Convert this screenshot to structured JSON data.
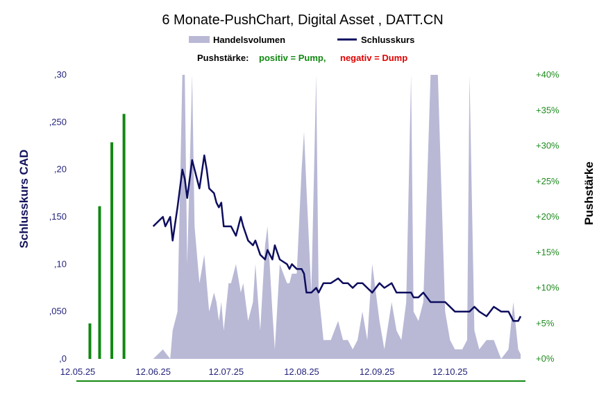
{
  "chart_data": {
    "type": "line",
    "title": "6 Monate-PushChart, Digital Asset , DATT.CN",
    "legend": {
      "volume_label": "Handelsvolumen",
      "close_label": "Schlusskurs",
      "placement": "top-center"
    },
    "push_legend": {
      "label": "Pushstärke:",
      "positive": "positiv = Pump,",
      "negative": "negativ = Dump"
    },
    "ylabel_left": "Schlusskurs CAD",
    "ylabel_right": "Pushstärke",
    "ylim_left": [
      0,
      0.3
    ],
    "ylim_right": [
      0,
      40
    ],
    "y_ticks_left": [
      ",0",
      ",050",
      ",10",
      ",150",
      ",20",
      ",250",
      ",30"
    ],
    "y_ticks_right": [
      "+0%",
      "+5%",
      "+10%",
      "+15%",
      "+20%",
      "+25%",
      "+30%",
      "+35%",
      "+40%"
    ],
    "x_ticks": [
      "12.05.25",
      "12.06.25",
      "12.07.25",
      "12.08.25",
      "12.09.25",
      "12.10.25"
    ],
    "x_range_days": [
      0,
      184
    ],
    "grid": false,
    "colors": {
      "volume": "#b9b9d6",
      "close": "#0d0d5e",
      "push_positive": "#118811",
      "push_negative": "#e00000",
      "title": "#000000",
      "left_axis": "#1f1f7a",
      "right_axis": "#1e8b1e",
      "baseline": "#118811"
    },
    "series": [
      {
        "name": "Schlusskurs",
        "type": "line",
        "axis": "left",
        "x": [
          31,
          35,
          36,
          38,
          39,
          41,
          43,
          44,
          45,
          47,
          48,
          50,
          52,
          53,
          54,
          56,
          57,
          58,
          59,
          60,
          62,
          63,
          65,
          67,
          68,
          70,
          72,
          73,
          75,
          77,
          78,
          80,
          81,
          83,
          86,
          87,
          88,
          90,
          92,
          93,
          94,
          96,
          98,
          99,
          101,
          104,
          107,
          109,
          111,
          113,
          115,
          117,
          119,
          121,
          124,
          126,
          129,
          131,
          133,
          135,
          137,
          138,
          140,
          142,
          145,
          148,
          151,
          153,
          155,
          158,
          160,
          161,
          163,
          165,
          168,
          171,
          174,
          177,
          179,
          181,
          182
        ],
        "y": [
          0.14,
          0.15,
          0.14,
          0.15,
          0.125,
          0.16,
          0.2,
          0.19,
          0.17,
          0.21,
          0.2,
          0.18,
          0.215,
          0.2,
          0.18,
          0.175,
          0.165,
          0.16,
          0.165,
          0.14,
          0.14,
          0.14,
          0.13,
          0.15,
          0.14,
          0.125,
          0.12,
          0.125,
          0.11,
          0.105,
          0.115,
          0.105,
          0.12,
          0.105,
          0.1,
          0.095,
          0.1,
          0.095,
          0.095,
          0.09,
          0.07,
          0.07,
          0.075,
          0.07,
          0.08,
          0.08,
          0.085,
          0.08,
          0.08,
          0.075,
          0.08,
          0.08,
          0.075,
          0.07,
          0.08,
          0.075,
          0.08,
          0.07,
          0.07,
          0.07,
          0.07,
          0.065,
          0.065,
          0.07,
          0.06,
          0.06,
          0.06,
          0.055,
          0.05,
          0.05,
          0.05,
          0.05,
          0.055,
          0.05,
          0.045,
          0.055,
          0.05,
          0.05,
          0.04,
          0.04,
          0.045
        ]
      },
      {
        "name": "Handelsvolumen",
        "type": "area",
        "axis": "volume",
        "x": [
          31,
          35,
          38,
          39,
          41,
          43,
          44,
          45,
          47,
          48,
          50,
          52,
          53,
          54,
          56,
          57,
          58,
          59,
          60,
          62,
          63,
          65,
          67,
          68,
          70,
          72,
          73,
          75,
          77,
          78,
          80,
          81,
          83,
          86,
          87,
          88,
          90,
          92,
          93,
          94,
          96,
          98,
          99,
          101,
          104,
          107,
          109,
          111,
          113,
          115,
          117,
          119,
          121,
          124,
          126,
          129,
          131,
          133,
          135,
          137,
          138,
          140,
          142,
          145,
          148,
          151,
          153,
          155,
          158,
          160,
          161,
          163,
          165,
          168,
          171,
          174,
          177,
          179,
          181,
          182
        ],
        "y": [
          0.0,
          0.01,
          0.0,
          0.03,
          0.05,
          0.31,
          0.31,
          0.1,
          0.31,
          0.14,
          0.08,
          0.11,
          0.08,
          0.05,
          0.07,
          0.06,
          0.04,
          0.06,
          0.03,
          0.08,
          0.08,
          0.1,
          0.07,
          0.08,
          0.04,
          0.06,
          0.1,
          0.03,
          0.12,
          0.14,
          0.05,
          0.01,
          0.1,
          0.08,
          0.08,
          0.09,
          0.09,
          0.2,
          0.24,
          0.18,
          0.07,
          0.31,
          0.07,
          0.02,
          0.02,
          0.04,
          0.02,
          0.02,
          0.01,
          0.02,
          0.05,
          0.02,
          0.1,
          0.04,
          0.01,
          0.06,
          0.03,
          0.02,
          0.06,
          0.31,
          0.05,
          0.04,
          0.06,
          0.31,
          0.31,
          0.05,
          0.02,
          0.01,
          0.01,
          0.02,
          0.31,
          0.03,
          0.01,
          0.02,
          0.02,
          0.0,
          0.01,
          0.06,
          0.01,
          0.005
        ]
      },
      {
        "name": "Pushstärke",
        "type": "bar",
        "axis": "right",
        "x": [
          5,
          9,
          14,
          19
        ],
        "y": [
          5.0,
          21.5,
          30.5,
          34.5
        ]
      }
    ]
  }
}
